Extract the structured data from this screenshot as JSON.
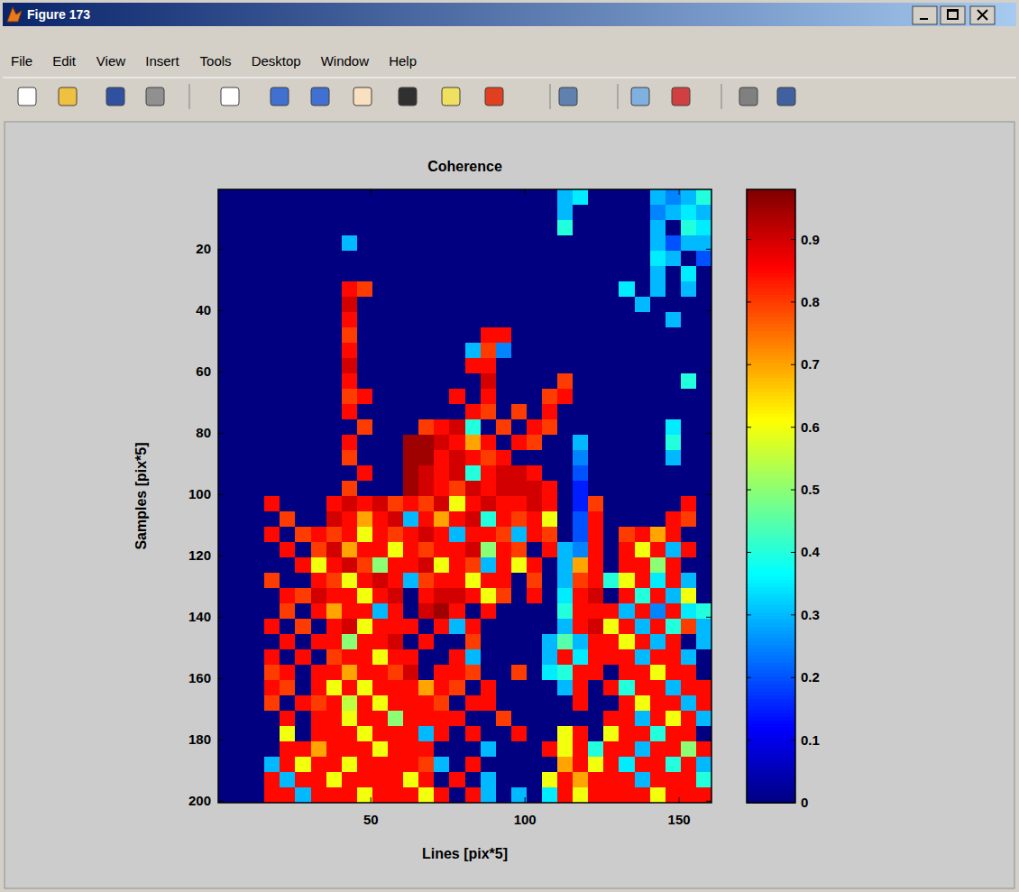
{
  "window": {
    "title": "Figure 173",
    "menu": [
      "File",
      "Edit",
      "View",
      "Insert",
      "Tools",
      "Desktop",
      "Window",
      "Help"
    ]
  },
  "chart_data": {
    "type": "heatmap",
    "title": "Coherence",
    "x_label": "Lines [pix*5]",
    "y_label": "Samples [pix*5]",
    "xlim": [
      0.5,
      160.5
    ],
    "ylim": [
      0.5,
      200.5
    ],
    "xticks": [
      50,
      100,
      150
    ],
    "yticks": [
      20,
      40,
      60,
      80,
      100,
      120,
      140,
      160,
      180,
      200
    ],
    "colorbar": {
      "lim": [
        0,
        0.98
      ],
      "ticks": [
        0,
        0.1,
        0.2,
        0.3,
        0.4,
        0.5,
        0.6,
        0.7,
        0.8,
        0.9
      ]
    },
    "x": [
      3,
      8,
      13,
      18,
      23,
      28,
      33,
      38,
      43,
      48,
      53,
      58,
      63,
      68,
      73,
      78,
      83,
      88,
      93,
      98,
      103,
      108,
      113,
      118,
      123,
      128,
      133,
      138,
      143,
      148,
      153,
      158
    ],
    "y": [
      3,
      8,
      13,
      18,
      23,
      28,
      33,
      38,
      43,
      48,
      53,
      58,
      63,
      68,
      73,
      78,
      83,
      88,
      93,
      98,
      103,
      108,
      113,
      118,
      123,
      128,
      133,
      138,
      143,
      148,
      153,
      158,
      163,
      168,
      173,
      178,
      183,
      188,
      193,
      198
    ],
    "z": [
      [
        0,
        0,
        0,
        0,
        0,
        0,
        0,
        0,
        0,
        0,
        0,
        0,
        0,
        0,
        0,
        0,
        0,
        0,
        0,
        0,
        0,
        0,
        0.3,
        0.35,
        0,
        0,
        0,
        0,
        0.3,
        0.25,
        0.3,
        0.4
      ],
      [
        0,
        0,
        0,
        0,
        0,
        0,
        0,
        0,
        0,
        0,
        0,
        0,
        0,
        0,
        0,
        0,
        0,
        0,
        0,
        0,
        0,
        0,
        0.3,
        0,
        0,
        0,
        0,
        0,
        0.25,
        0.3,
        0.35,
        0.3
      ],
      [
        0,
        0,
        0,
        0,
        0,
        0,
        0,
        0,
        0,
        0,
        0,
        0,
        0,
        0,
        0,
        0,
        0,
        0,
        0,
        0,
        0,
        0,
        0.4,
        0,
        0,
        0,
        0,
        0,
        0.3,
        0,
        0.4,
        0.35
      ],
      [
        0,
        0,
        0,
        0,
        0,
        0,
        0,
        0,
        0.3,
        0,
        0,
        0,
        0,
        0,
        0,
        0,
        0,
        0,
        0,
        0,
        0,
        0,
        0,
        0,
        0,
        0,
        0,
        0,
        0.3,
        0.2,
        0.3,
        0.3
      ],
      [
        0,
        0,
        0,
        0,
        0,
        0,
        0,
        0,
        0,
        0,
        0,
        0,
        0,
        0,
        0,
        0,
        0,
        0,
        0,
        0,
        0,
        0,
        0,
        0,
        0,
        0,
        0,
        0,
        0.35,
        0.3,
        0,
        0.2
      ],
      [
        0,
        0,
        0,
        0,
        0,
        0,
        0,
        0,
        0,
        0,
        0,
        0,
        0,
        0,
        0,
        0,
        0,
        0,
        0,
        0,
        0,
        0,
        0,
        0,
        0,
        0,
        0,
        0,
        0.3,
        0,
        0.35,
        0
      ],
      [
        0,
        0,
        0,
        0,
        0,
        0,
        0,
        0,
        0.85,
        0.8,
        0,
        0,
        0,
        0,
        0,
        0,
        0,
        0,
        0,
        0,
        0,
        0,
        0,
        0,
        0,
        0,
        0.35,
        0,
        0.3,
        0,
        0.3,
        0
      ],
      [
        0,
        0,
        0,
        0,
        0,
        0,
        0,
        0,
        0.9,
        0,
        0,
        0,
        0,
        0,
        0,
        0,
        0,
        0,
        0,
        0,
        0,
        0,
        0,
        0,
        0,
        0,
        0,
        0.3,
        0,
        0,
        0,
        0
      ],
      [
        0,
        0,
        0,
        0,
        0,
        0,
        0,
        0,
        0.85,
        0,
        0,
        0,
        0,
        0,
        0,
        0,
        0,
        0,
        0,
        0,
        0,
        0,
        0,
        0,
        0,
        0,
        0,
        0,
        0,
        0.3,
        0,
        0
      ],
      [
        0,
        0,
        0,
        0,
        0,
        0,
        0,
        0,
        0.8,
        0,
        0,
        0,
        0,
        0,
        0,
        0,
        0,
        0.85,
        0.85,
        0,
        0,
        0,
        0,
        0,
        0,
        0,
        0,
        0,
        0,
        0,
        0,
        0
      ],
      [
        0,
        0,
        0,
        0,
        0,
        0,
        0,
        0,
        0.85,
        0,
        0,
        0,
        0,
        0,
        0,
        0,
        0.3,
        0.8,
        0.25,
        0,
        0,
        0,
        0,
        0,
        0,
        0,
        0,
        0,
        0,
        0,
        0,
        0
      ],
      [
        0,
        0,
        0,
        0,
        0,
        0,
        0,
        0,
        0.9,
        0,
        0,
        0,
        0,
        0,
        0,
        0,
        0.85,
        0.85,
        0,
        0,
        0,
        0,
        0,
        0,
        0,
        0,
        0,
        0,
        0,
        0,
        0,
        0
      ],
      [
        0,
        0,
        0,
        0,
        0,
        0,
        0,
        0,
        0.85,
        0,
        0,
        0,
        0,
        0,
        0,
        0,
        0,
        0.9,
        0,
        0,
        0,
        0,
        0.8,
        0,
        0,
        0,
        0,
        0,
        0,
        0,
        0.4,
        0
      ],
      [
        0,
        0,
        0,
        0,
        0,
        0,
        0,
        0,
        0.8,
        0.85,
        0,
        0,
        0,
        0,
        0,
        0.85,
        0,
        0.85,
        0,
        0,
        0,
        0.8,
        0.85,
        0,
        0,
        0,
        0,
        0,
        0,
        0,
        0,
        0
      ],
      [
        0,
        0,
        0,
        0,
        0,
        0,
        0,
        0,
        0.85,
        0,
        0,
        0,
        0,
        0,
        0,
        0,
        0.85,
        0.8,
        0,
        0.8,
        0,
        0.85,
        0,
        0,
        0,
        0,
        0,
        0,
        0,
        0,
        0,
        0
      ],
      [
        0,
        0,
        0,
        0,
        0,
        0,
        0,
        0,
        0,
        0.8,
        0,
        0,
        0,
        0.8,
        0.85,
        0.9,
        0.4,
        0,
        0.8,
        0,
        0.85,
        0.8,
        0,
        0,
        0,
        0,
        0,
        0,
        0,
        0.35,
        0,
        0
      ],
      [
        0,
        0,
        0,
        0,
        0,
        0,
        0,
        0,
        0.85,
        0,
        0,
        0,
        0.95,
        0.95,
        0.9,
        0.85,
        0.7,
        0.85,
        0,
        0.85,
        0.8,
        0,
        0,
        0.3,
        0,
        0,
        0,
        0,
        0,
        0.4,
        0,
        0
      ],
      [
        0,
        0,
        0,
        0,
        0,
        0,
        0,
        0,
        0.8,
        0,
        0,
        0,
        0.95,
        0.95,
        0.85,
        0.9,
        0.85,
        0.8,
        0.85,
        0,
        0,
        0,
        0,
        0.25,
        0,
        0,
        0,
        0,
        0,
        0.3,
        0,
        0
      ],
      [
        0,
        0,
        0,
        0,
        0,
        0,
        0,
        0,
        0,
        0.85,
        0,
        0,
        0.95,
        0.9,
        0.85,
        0.9,
        0.4,
        0.85,
        0.9,
        0.9,
        0.85,
        0,
        0,
        0.2,
        0,
        0,
        0,
        0,
        0,
        0,
        0,
        0
      ],
      [
        0,
        0,
        0,
        0,
        0,
        0,
        0,
        0,
        0.8,
        0,
        0,
        0,
        0.95,
        0.9,
        0.85,
        0.8,
        0.9,
        0.85,
        0.9,
        0.9,
        0.9,
        0.85,
        0,
        0.15,
        0,
        0,
        0,
        0,
        0,
        0,
        0,
        0
      ],
      [
        0,
        0,
        0,
        0.85,
        0,
        0,
        0,
        0.85,
        0.9,
        0.85,
        0.9,
        0.8,
        0.85,
        0.8,
        0.9,
        0.6,
        0.85,
        0.9,
        0.85,
        0.85,
        0.9,
        0.85,
        0,
        0.15,
        0.8,
        0,
        0,
        0,
        0,
        0,
        0.85,
        0
      ],
      [
        0,
        0,
        0,
        0,
        0.8,
        0,
        0,
        0.9,
        0.85,
        0.7,
        0.85,
        0.9,
        0.3,
        0.85,
        0.7,
        0.85,
        0.9,
        0.4,
        0.85,
        0.8,
        0.85,
        0.6,
        0,
        0.2,
        0.85,
        0,
        0,
        0,
        0,
        0.85,
        0.8,
        0
      ],
      [
        0,
        0,
        0,
        0.85,
        0,
        0.8,
        0.85,
        0.8,
        0.85,
        0.6,
        0.85,
        0.8,
        0.85,
        0.9,
        0.85,
        0.3,
        0.85,
        0.85,
        0.8,
        0.3,
        0.85,
        0.8,
        0,
        0.2,
        0.85,
        0,
        0.8,
        0.85,
        0.7,
        0.85,
        0,
        0
      ],
      [
        0,
        0,
        0,
        0,
        0.85,
        0,
        0.8,
        0.9,
        0.7,
        0.85,
        0.85,
        0.6,
        0.85,
        0.8,
        0.85,
        0.85,
        0.9,
        0.5,
        0.85,
        0.8,
        0,
        0.85,
        0.3,
        0.25,
        0.85,
        0,
        0.85,
        0.6,
        0.85,
        0.3,
        0.85,
        0
      ],
      [
        0,
        0,
        0,
        0,
        0,
        0.85,
        0.6,
        0.85,
        0.9,
        0.8,
        0.5,
        0.85,
        0.85,
        0.9,
        0.6,
        0.85,
        0.8,
        0.3,
        0.85,
        0.6,
        0.85,
        0,
        0.3,
        0.7,
        0.85,
        0,
        0.85,
        0.85,
        0.5,
        0.85,
        0,
        0
      ],
      [
        0,
        0,
        0,
        0.8,
        0,
        0,
        0.85,
        0.8,
        0.6,
        0.85,
        0.9,
        0.85,
        0.3,
        0.8,
        0.85,
        0.85,
        0.6,
        0.85,
        0.85,
        0,
        0.8,
        0,
        0.3,
        0.8,
        0.85,
        0.4,
        0.6,
        0.85,
        0.35,
        0.85,
        0.3,
        0
      ],
      [
        0,
        0,
        0,
        0,
        0.85,
        0.8,
        0.9,
        0.85,
        0.85,
        0.6,
        0.85,
        0.9,
        0,
        0.85,
        0.9,
        0.9,
        0.85,
        0.6,
        0.8,
        0,
        0.85,
        0,
        0.35,
        0.85,
        0.9,
        0,
        0.85,
        0.4,
        0.85,
        0.3,
        0.6,
        0
      ],
      [
        0,
        0,
        0,
        0,
        0.8,
        0,
        0.85,
        0.7,
        0.85,
        0.85,
        0.3,
        0.85,
        0,
        0.9,
        0.95,
        0.85,
        0,
        0.85,
        0,
        0,
        0,
        0,
        0.4,
        0.85,
        0.85,
        0.85,
        0.3,
        0.85,
        0.25,
        0.85,
        0.35,
        0.4
      ],
      [
        0,
        0,
        0,
        0.85,
        0,
        0.8,
        0,
        0.85,
        0.9,
        0.6,
        0.85,
        0.85,
        0.85,
        0,
        0.85,
        0.3,
        0.85,
        0,
        0,
        0,
        0,
        0,
        0.3,
        0.85,
        0.9,
        0.6,
        0.85,
        0.3,
        0.85,
        0.4,
        0.8,
        0.3
      ],
      [
        0,
        0,
        0,
        0,
        0.85,
        0,
        0.85,
        0.85,
        0.5,
        0.85,
        0.85,
        0.9,
        0,
        0.85,
        0,
        0,
        0.8,
        0,
        0,
        0,
        0,
        0.3,
        0.45,
        0.3,
        0.85,
        0.85,
        0.6,
        0.85,
        0.3,
        0.85,
        0,
        0.3
      ],
      [
        0,
        0,
        0,
        0.85,
        0,
        0.85,
        0,
        0.8,
        0.85,
        0.85,
        0.6,
        0.85,
        0.85,
        0,
        0,
        0.85,
        0.3,
        0,
        0,
        0,
        0,
        0.3,
        0.85,
        0.35,
        0.85,
        0.85,
        0.85,
        0.3,
        0.85,
        0.85,
        0.3,
        0
      ],
      [
        0,
        0,
        0,
        0.8,
        0.85,
        0,
        0.85,
        0.85,
        0.7,
        0.85,
        0.85,
        0.8,
        0.9,
        0,
        0.85,
        0.85,
        0.8,
        0,
        0,
        0.8,
        0,
        0.35,
        0.4,
        0.85,
        0.85,
        0,
        0.85,
        0.85,
        0.6,
        0.85,
        0.85,
        0
      ],
      [
        0,
        0,
        0,
        0.85,
        0.8,
        0,
        0.85,
        0.6,
        0.85,
        0.6,
        0.85,
        0.85,
        0.85,
        0.7,
        0.85,
        0.8,
        0,
        0.85,
        0,
        0,
        0,
        0,
        0.3,
        0.85,
        0,
        0.85,
        0.4,
        0.85,
        0.85,
        0.3,
        0.85,
        0.85
      ],
      [
        0,
        0,
        0,
        0.8,
        0,
        0.85,
        0.8,
        0.85,
        0.55,
        0.85,
        0.6,
        0.85,
        0.85,
        0.85,
        0.8,
        0,
        0.85,
        0.85,
        0,
        0,
        0,
        0,
        0,
        0.85,
        0,
        0,
        0.85,
        0.6,
        0.85,
        0.85,
        0.3,
        0.85
      ],
      [
        0,
        0,
        0,
        0,
        0.85,
        0,
        0.85,
        0.85,
        0.6,
        0.85,
        0.85,
        0.5,
        0.85,
        0.85,
        0.85,
        0.85,
        0,
        0,
        0.8,
        0,
        0,
        0,
        0,
        0,
        0,
        0.85,
        0.85,
        0.3,
        0.85,
        0.6,
        0.85,
        0.3
      ],
      [
        0,
        0,
        0,
        0,
        0.6,
        0,
        0.85,
        0.85,
        0.85,
        0.6,
        0.85,
        0.85,
        0.85,
        0.3,
        0.85,
        0,
        0.85,
        0,
        0,
        0.85,
        0,
        0,
        0.6,
        0.85,
        0,
        0.6,
        0.85,
        0.85,
        0.4,
        0.85,
        0.85,
        0
      ],
      [
        0,
        0,
        0,
        0,
        0.85,
        0.85,
        0.7,
        0.85,
        0.85,
        0.85,
        0.6,
        0.85,
        0.85,
        0.85,
        0,
        0,
        0,
        0.3,
        0,
        0,
        0,
        0.85,
        0.6,
        0.85,
        0.4,
        0.85,
        0.85,
        0.3,
        0.85,
        0.85,
        0.5,
        0.85
      ],
      [
        0,
        0,
        0,
        0.3,
        0.85,
        0.6,
        0.85,
        0.85,
        0.6,
        0.85,
        0.85,
        0.85,
        0.85,
        0.8,
        0.3,
        0,
        0.85,
        0,
        0,
        0,
        0,
        0,
        0.7,
        0.85,
        0.6,
        0.85,
        0.35,
        0.85,
        0.85,
        0.4,
        0.85,
        0.3
      ],
      [
        0,
        0,
        0,
        0.85,
        0.3,
        0.85,
        0.85,
        0.6,
        0.85,
        0.85,
        0.85,
        0.85,
        0.6,
        0.85,
        0,
        0.85,
        0,
        0.3,
        0,
        0,
        0,
        0.6,
        0.85,
        0.7,
        0.85,
        0.85,
        0.85,
        0.3,
        0.85,
        0.85,
        0.85,
        0.4
      ],
      [
        0,
        0,
        0,
        0.85,
        0.85,
        0.3,
        0.85,
        0.85,
        0.85,
        0.6,
        0.85,
        0.85,
        0.85,
        0.6,
        0.85,
        0,
        0.85,
        0.3,
        0,
        0.3,
        0,
        0.35,
        0.85,
        0.6,
        0.85,
        0.85,
        0.85,
        0.85,
        0.6,
        0.85,
        0.85,
        0.85
      ]
    ]
  }
}
